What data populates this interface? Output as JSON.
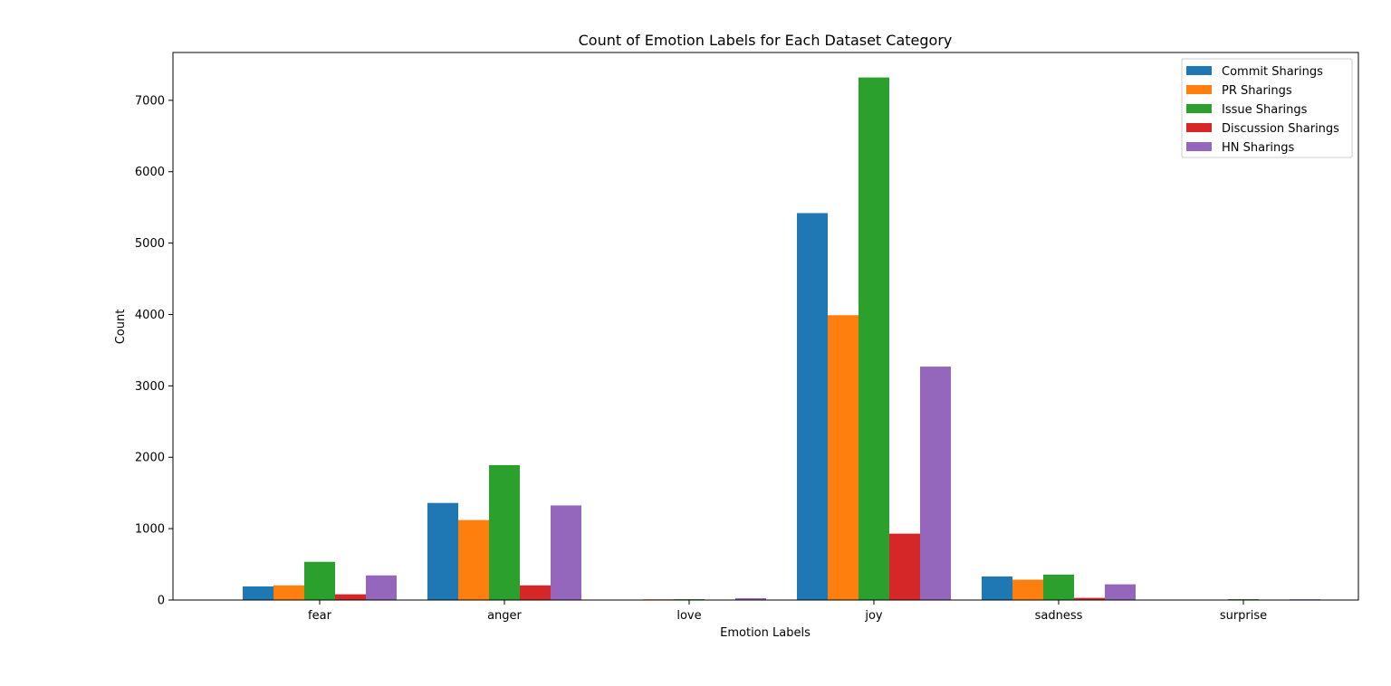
{
  "chart_data": {
    "type": "bar",
    "title": "Count of Emotion Labels for Each Dataset Category",
    "xlabel": "Emotion Labels",
    "ylabel": "Count",
    "categories": [
      "fear",
      "anger",
      "love",
      "joy",
      "sadness",
      "surprise"
    ],
    "ylim": [
      0,
      7670
    ],
    "yticks": [
      0,
      1000,
      2000,
      3000,
      4000,
      5000,
      6000,
      7000
    ],
    "grid": false,
    "legend_position": "top-right",
    "series": [
      {
        "name": "Commit Sharings",
        "color": "#1f77b4",
        "values": [
          190,
          1360,
          6,
          5420,
          330,
          3
        ]
      },
      {
        "name": "PR Sharings",
        "color": "#ff7f0e",
        "values": [
          205,
          1120,
          10,
          3990,
          285,
          4
        ]
      },
      {
        "name": "Issue Sharings",
        "color": "#2ca02c",
        "values": [
          535,
          1890,
          12,
          7320,
          355,
          12
        ]
      },
      {
        "name": "Discussion Sharings",
        "color": "#d62728",
        "values": [
          80,
          205,
          2,
          930,
          30,
          2
        ]
      },
      {
        "name": "HN Sharings",
        "color": "#9467bd",
        "values": [
          345,
          1325,
          25,
          3270,
          220,
          10
        ]
      }
    ]
  }
}
